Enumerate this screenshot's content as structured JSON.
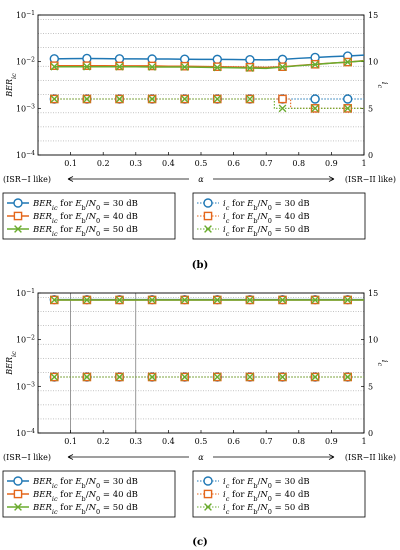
{
  "colors": {
    "s30": "#1f77b4",
    "s40": "#e4661b",
    "s50": "#6aab2e",
    "grid": "#888888"
  },
  "chart_data": [
    {
      "type": "line",
      "caption": "(b)",
      "x": [
        0.05,
        0.1,
        0.15,
        0.2,
        0.25,
        0.3,
        0.35,
        0.4,
        0.45,
        0.5,
        0.55,
        0.6,
        0.65,
        0.7,
        0.75,
        0.8,
        0.85,
        0.9,
        0.95,
        1.0
      ],
      "xlim": [
        0,
        1
      ],
      "xticks": [
        "0.1",
        "0.2",
        "0.3",
        "0.4",
        "0.5",
        "0.6",
        "0.7",
        "0.8",
        "0.9",
        "1"
      ],
      "xlabel": "α",
      "x_left_note": "(ISR−I like)",
      "x_right_note": "(ISR−II like)",
      "ylabel_left": "BER_ic",
      "ylabel_right": "i_c",
      "yleft_ticks": [
        "10^-1",
        "10^-2",
        "10^-3",
        "10^-4"
      ],
      "yleft_lim": [
        0.0001,
        0.1
      ],
      "yleft_scale": "log",
      "yright_ticks": [
        "15",
        "10",
        "5",
        "0"
      ],
      "yright_lim": [
        0,
        15
      ],
      "markers_x": [
        0.05,
        0.15,
        0.25,
        0.35,
        0.45,
        0.55,
        0.65,
        0.75,
        0.85,
        0.95
      ],
      "ber_series": [
        {
          "name": "BER_ic for Eb/N0 = 30 dB",
          "values": [
            0.0115,
            0.0116,
            0.0117,
            0.0116,
            0.0115,
            0.0115,
            0.0114,
            0.0114,
            0.0113,
            0.0112,
            0.0112,
            0.0111,
            0.011,
            0.0109,
            0.0112,
            0.0118,
            0.0123,
            0.0128,
            0.0132,
            0.0138
          ]
        },
        {
          "name": "BER_ic for Eb/N0 = 40 dB",
          "values": [
            0.0082,
            0.0082,
            0.0082,
            0.0082,
            0.0081,
            0.0081,
            0.0081,
            0.008,
            0.008,
            0.0079,
            0.0078,
            0.0077,
            0.0076,
            0.0075,
            0.0078,
            0.0083,
            0.0088,
            0.0093,
            0.0098,
            0.0105
          ]
        },
        {
          "name": "BER_ic for Eb/N0 = 50 dB",
          "values": [
            0.0078,
            0.0078,
            0.0078,
            0.0078,
            0.0078,
            0.0078,
            0.0077,
            0.0077,
            0.0077,
            0.0076,
            0.0075,
            0.0074,
            0.0073,
            0.0072,
            0.0077,
            0.0082,
            0.0087,
            0.0093,
            0.0098,
            0.0104
          ]
        }
      ],
      "ic_series": [
        {
          "name": "i_c for Eb/N0 = 30 dB",
          "values": [
            6,
            6,
            6,
            6,
            6,
            6,
            6,
            6,
            6,
            6,
            6,
            6,
            6,
            6,
            6,
            6,
            6,
            6,
            6,
            6
          ]
        },
        {
          "name": "i_c for Eb/N0 = 40 dB",
          "values": [
            6,
            6,
            6,
            6,
            6,
            6,
            6,
            6,
            6,
            6,
            6,
            6,
            6,
            6,
            6,
            5,
            5,
            5,
            5,
            5
          ]
        },
        {
          "name": "i_c for Eb/N0 = 50 dB",
          "values": [
            6,
            6,
            6,
            6,
            6,
            6,
            6,
            6,
            6,
            6,
            6,
            6,
            6,
            6,
            5,
            5,
            5,
            5,
            5,
            5
          ]
        }
      ],
      "legend_left": [
        "BER_ic for Eb/N0 = 30 dB",
        "BER_ic for Eb/N0 = 40 dB",
        "BER_ic for Eb/N0 = 50 dB"
      ],
      "legend_right": [
        "i_c for Eb/N0 = 30 dB",
        "i_c for Eb/N0 = 40 dB",
        "i_c for Eb/N0 = 50 dB"
      ],
      "grid": true,
      "legend_position": "bottom"
    },
    {
      "type": "line",
      "caption": "(c)",
      "x": [
        0.05,
        0.1,
        0.15,
        0.2,
        0.25,
        0.3,
        0.35,
        0.4,
        0.45,
        0.5,
        0.55,
        0.6,
        0.65,
        0.7,
        0.75,
        0.8,
        0.85,
        0.9,
        0.95,
        1.0
      ],
      "xlim": [
        0,
        1
      ],
      "xticks": [
        "0.1",
        "0.2",
        "0.3",
        "0.4",
        "0.5",
        "0.6",
        "0.7",
        "0.8",
        "0.9",
        "1"
      ],
      "xlabel": "α",
      "x_left_note": "(ISR−I like)",
      "x_right_note": "(ISR−II like)",
      "ylabel_left": "BER_ic",
      "ylabel_right": "i_c",
      "yleft_ticks": [
        "10^-1",
        "10^-2",
        "10^-3",
        "10^-4"
      ],
      "yleft_lim": [
        0.0001,
        0.1
      ],
      "yleft_scale": "log",
      "yright_ticks": [
        "15",
        "10",
        "5",
        "0"
      ],
      "yright_lim": [
        0,
        15
      ],
      "markers_x": [
        0.05,
        0.15,
        0.25,
        0.35,
        0.45,
        0.55,
        0.65,
        0.75,
        0.85,
        0.95
      ],
      "ber_series": [
        {
          "name": "BER_ic for Eb/N0 = 30 dB",
          "values": [
            0.072,
            0.072,
            0.072,
            0.072,
            0.072,
            0.072,
            0.072,
            0.072,
            0.072,
            0.072,
            0.072,
            0.072,
            0.072,
            0.072,
            0.072,
            0.072,
            0.072,
            0.072,
            0.072,
            0.072
          ]
        },
        {
          "name": "BER_ic for Eb/N0 = 40 dB",
          "values": [
            0.071,
            0.071,
            0.071,
            0.071,
            0.071,
            0.071,
            0.071,
            0.071,
            0.071,
            0.071,
            0.071,
            0.071,
            0.071,
            0.071,
            0.071,
            0.071,
            0.071,
            0.071,
            0.071,
            0.071
          ]
        },
        {
          "name": "BER_ic for Eb/N0 = 50 dB",
          "values": [
            0.071,
            0.071,
            0.071,
            0.071,
            0.071,
            0.071,
            0.071,
            0.071,
            0.071,
            0.071,
            0.071,
            0.071,
            0.071,
            0.071,
            0.071,
            0.071,
            0.071,
            0.071,
            0.071,
            0.071
          ]
        }
      ],
      "ic_series": [
        {
          "name": "i_c for Eb/N0 = 30 dB",
          "values": [
            6,
            6,
            6,
            6,
            6,
            6,
            6,
            6,
            6,
            6,
            6,
            6,
            6,
            6,
            6,
            6,
            6,
            6,
            6,
            6
          ]
        },
        {
          "name": "i_c for Eb/N0 = 40 dB",
          "values": [
            6,
            6,
            6,
            6,
            6,
            6,
            6,
            6,
            6,
            6,
            6,
            6,
            6,
            6,
            6,
            6,
            6,
            6,
            6,
            6
          ]
        },
        {
          "name": "i_c for Eb/N0 = 50 dB",
          "values": [
            6,
            6,
            6,
            6,
            6,
            6,
            6,
            6,
            6,
            6,
            6,
            6,
            6,
            6,
            6,
            6,
            6,
            6,
            6,
            6
          ]
        }
      ],
      "legend_left": [
        "BER_ic for Eb/N0 = 30 dB",
        "BER_ic for Eb/N0 = 40 dB",
        "BER_ic for Eb/N0 = 50 dB"
      ],
      "legend_right": [
        "i_c for Eb/N0 = 30 dB",
        "i_c for Eb/N0 = 40 dB",
        "i_c for Eb/N0 = 50 dB"
      ],
      "grid": true,
      "legend_position": "bottom"
    }
  ]
}
